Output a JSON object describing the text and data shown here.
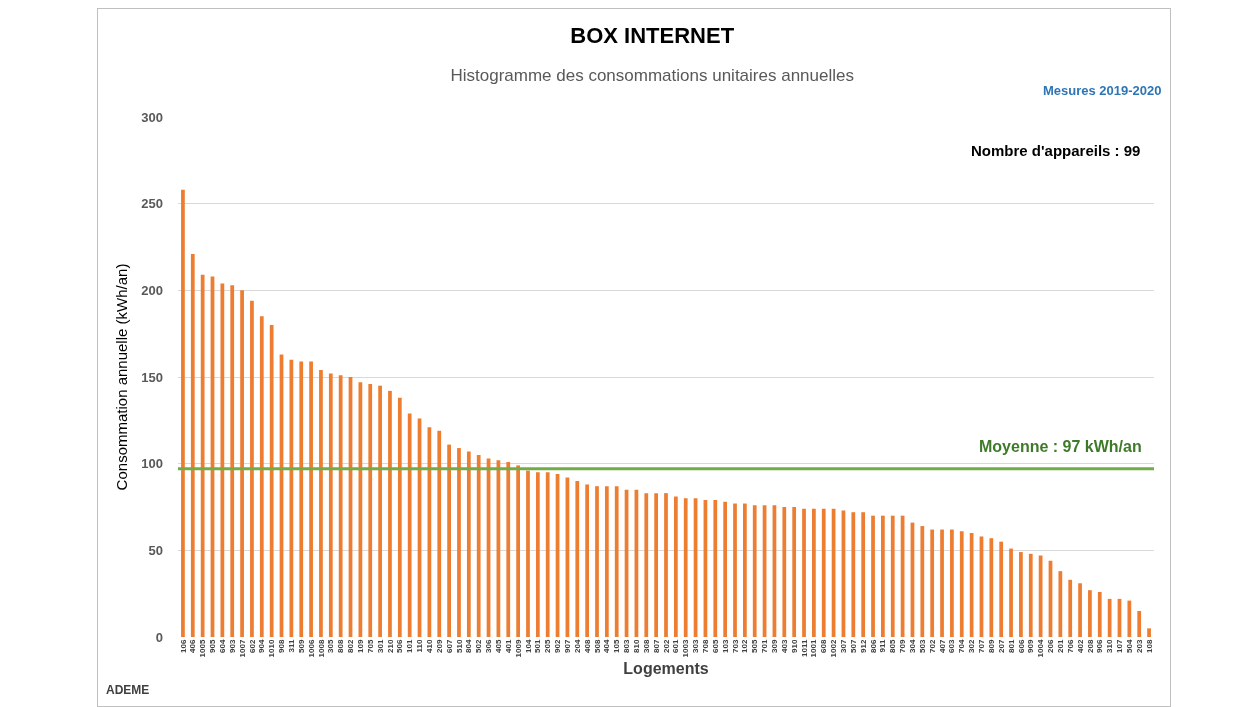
{
  "chart_data": {
    "type": "bar",
    "title": "BOX INTERNET",
    "subtitle": "Histogramme des consommations unitaires annuelles",
    "xlabel": "Logements",
    "ylabel": "Consommation annuelle (kWh/an)",
    "annotations": [
      "Nombre d'appareils : 99",
      "Mesures 2019-2020",
      "ADEME"
    ],
    "categories": [
      "106",
      "406",
      "1005",
      "905",
      "604",
      "903",
      "1007",
      "602",
      "904",
      "1010",
      "908",
      "311",
      "509",
      "1006",
      "1008",
      "305",
      "808",
      "802",
      "109",
      "705",
      "301",
      "210",
      "506",
      "101",
      "110",
      "410",
      "209",
      "607",
      "510",
      "804",
      "502",
      "306",
      "405",
      "401",
      "1009",
      "104",
      "501",
      "205",
      "902",
      "907",
      "204",
      "408",
      "508",
      "404",
      "105",
      "803",
      "810",
      "308",
      "807",
      "202",
      "601",
      "1003",
      "303",
      "708",
      "605",
      "103",
      "703",
      "102",
      "505",
      "701",
      "309",
      "403",
      "910",
      "1011",
      "1001",
      "608",
      "1002",
      "307",
      "507",
      "912",
      "806",
      "911",
      "805",
      "709",
      "304",
      "503",
      "702",
      "407",
      "603",
      "704",
      "302",
      "707",
      "809",
      "207",
      "801",
      "606",
      "909",
      "1004",
      "206",
      "201",
      "706",
      "402",
      "208",
      "906",
      "310",
      "107",
      "504",
      "203",
      "108"
    ],
    "values": [
      258,
      221,
      209,
      208,
      204,
      203,
      200,
      194,
      185,
      180,
      163,
      160,
      159,
      159,
      154,
      152,
      151,
      150,
      147,
      146,
      145,
      142,
      138,
      129,
      126,
      121,
      119,
      111,
      109,
      107,
      105,
      103,
      102,
      101,
      99,
      96,
      95,
      95,
      94,
      92,
      90,
      88,
      87,
      87,
      87,
      85,
      85,
      83,
      83,
      83,
      81,
      80,
      80,
      79,
      79,
      78,
      77,
      77,
      76,
      76,
      76,
      75,
      75,
      74,
      74,
      74,
      74,
      73,
      72,
      72,
      70,
      70,
      70,
      70,
      66,
      64,
      62,
      62,
      62,
      61,
      60,
      58,
      57,
      55,
      51,
      49,
      48,
      47,
      44,
      38,
      33,
      31,
      27,
      26,
      22,
      22,
      21,
      15,
      5
    ],
    "color": "#ed7d31",
    "ylim": [
      0,
      300
    ],
    "yticks": [
      0,
      50,
      100,
      150,
      200,
      250,
      300
    ],
    "grid": "y",
    "ref_lines": [
      {
        "axis": "y",
        "value": 97,
        "label": "Moyenne : 97 kWh/an",
        "color": "#70ad47"
      }
    ]
  }
}
